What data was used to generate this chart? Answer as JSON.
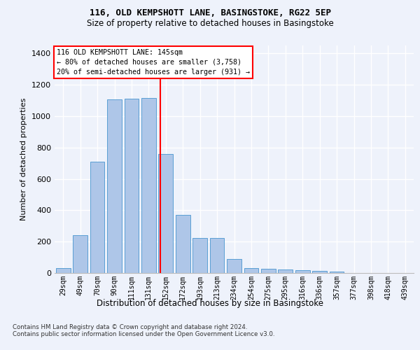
{
  "title": "116, OLD KEMPSHOTT LANE, BASINGSTOKE, RG22 5EP",
  "subtitle": "Size of property relative to detached houses in Basingstoke",
  "xlabel": "Distribution of detached houses by size in Basingstoke",
  "ylabel": "Number of detached properties",
  "categories": [
    "29sqm",
    "49sqm",
    "70sqm",
    "90sqm",
    "111sqm",
    "131sqm",
    "152sqm",
    "172sqm",
    "193sqm",
    "213sqm",
    "234sqm",
    "254sqm",
    "275sqm",
    "295sqm",
    "316sqm",
    "336sqm",
    "357sqm",
    "377sqm",
    "398sqm",
    "418sqm",
    "439sqm"
  ],
  "values": [
    30,
    240,
    710,
    1105,
    1110,
    1115,
    760,
    370,
    225,
    225,
    90,
    30,
    25,
    22,
    18,
    12,
    8,
    0,
    0,
    0,
    0
  ],
  "bar_color": "#aec6e8",
  "bar_edge_color": "#5a9fd4",
  "background_color": "#eef2fb",
  "grid_color": "#ffffff",
  "vline_color": "red",
  "annotation_text": "116 OLD KEMPSHOTT LANE: 145sqm\n← 80% of detached houses are smaller (3,758)\n20% of semi-detached houses are larger (931) →",
  "annotation_box_color": "white",
  "annotation_box_edge": "red",
  "footer": "Contains HM Land Registry data © Crown copyright and database right 2024.\nContains public sector information licensed under the Open Government Licence v3.0.",
  "ylim": [
    0,
    1450
  ],
  "figsize": [
    6.0,
    5.0
  ],
  "dpi": 100
}
